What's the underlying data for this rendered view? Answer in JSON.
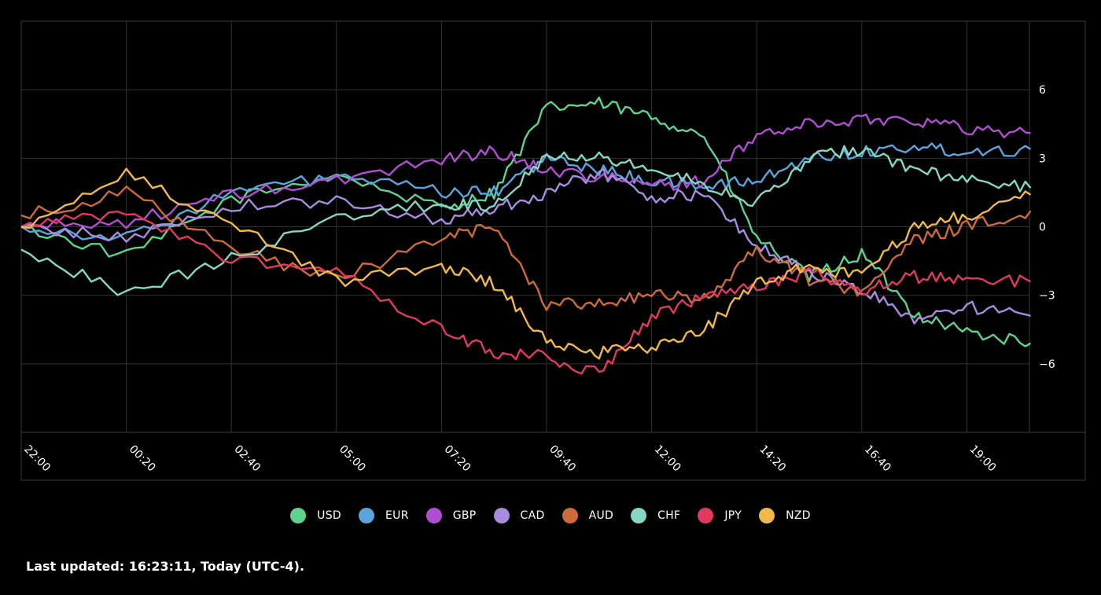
{
  "chart_data": {
    "type": "line",
    "title": "",
    "xlabel": "",
    "ylabel": "",
    "x_ticks": [
      "22:00",
      "00:20",
      "02:40",
      "05:00",
      "07:20",
      "09:40",
      "12:00",
      "14:20",
      "16:40",
      "19:00"
    ],
    "y_ticks": [
      "6",
      "3",
      "0",
      "−3",
      "−6"
    ],
    "y_tick_values": [
      6,
      3,
      0,
      -3,
      -6
    ],
    "ylim": [
      -9,
      9
    ],
    "grid": true,
    "legend_position": "bottom",
    "x_times": [
      "22:00",
      "00:20",
      "02:40",
      "05:00",
      "07:20",
      "08:30",
      "09:40",
      "10:50",
      "12:00",
      "13:10",
      "14:20",
      "15:30",
      "16:40",
      "17:50",
      "19:00",
      "20:25"
    ],
    "series": [
      {
        "name": "USD",
        "color": "#5fd38d",
        "values": [
          0,
          -1.3,
          1.2,
          2.3,
          0.8,
          1.5,
          5.2,
          5.4,
          4.8,
          4.0,
          -0.5,
          -2.2,
          -1.2,
          -3.8,
          -4.6,
          -5.1
        ]
      },
      {
        "name": "EUR",
        "color": "#5aa5dd",
        "values": [
          0,
          -0.5,
          1.5,
          2.2,
          1.5,
          1.5,
          3.0,
          2.5,
          2.0,
          1.8,
          2.0,
          3.0,
          3.3,
          3.5,
          3.3,
          3.4
        ]
      },
      {
        "name": "GBP",
        "color": "#b04fd1",
        "values": [
          0,
          0.2,
          1.4,
          2.0,
          3.0,
          3.3,
          2.5,
          2.2,
          1.8,
          2.0,
          4.0,
          4.5,
          4.7,
          4.7,
          4.3,
          4.1
        ]
      },
      {
        "name": "CAD",
        "color": "#a98ce0",
        "values": [
          0,
          -0.5,
          0.9,
          1.1,
          0.3,
          0.8,
          1.5,
          2.4,
          1.3,
          1.4,
          -0.8,
          -2.0,
          -2.8,
          -4.0,
          -3.5,
          -3.9
        ]
      },
      {
        "name": "AUD",
        "color": "#cd6b3a",
        "values": [
          0.5,
          1.5,
          -1.0,
          -2.3,
          -0.5,
          0,
          -3.4,
          -3.3,
          -3.0,
          -3.2,
          -1.0,
          -2.3,
          -2.8,
          -0.6,
          0,
          0.7
        ]
      },
      {
        "name": "CHF",
        "color": "#86d7c4",
        "values": [
          -1.0,
          -2.9,
          -1.4,
          0.4,
          1.0,
          0.9,
          3.2,
          3.1,
          2.5,
          1.9,
          1.0,
          3.0,
          3.4,
          2.5,
          2.0,
          1.7
        ]
      },
      {
        "name": "JPY",
        "color": "#e13a5e",
        "values": [
          0,
          0.6,
          -1.4,
          -2.0,
          -4.5,
          -5.5,
          -5.7,
          -6.4,
          -4.0,
          -3.0,
          -2.7,
          -2.0,
          -2.8,
          -2.2,
          -2.3,
          -2.4
        ]
      },
      {
        "name": "NZD",
        "color": "#f0b94a",
        "values": [
          0,
          2.3,
          0.2,
          -2.4,
          -1.7,
          -2.5,
          -5.0,
          -5.5,
          -5.3,
          -4.5,
          -2.5,
          -1.7,
          -2.2,
          0,
          0.5,
          1.4
        ]
      }
    ]
  },
  "footer": {
    "text": "Last updated: 16:23:11, Today (UTC-4)."
  }
}
